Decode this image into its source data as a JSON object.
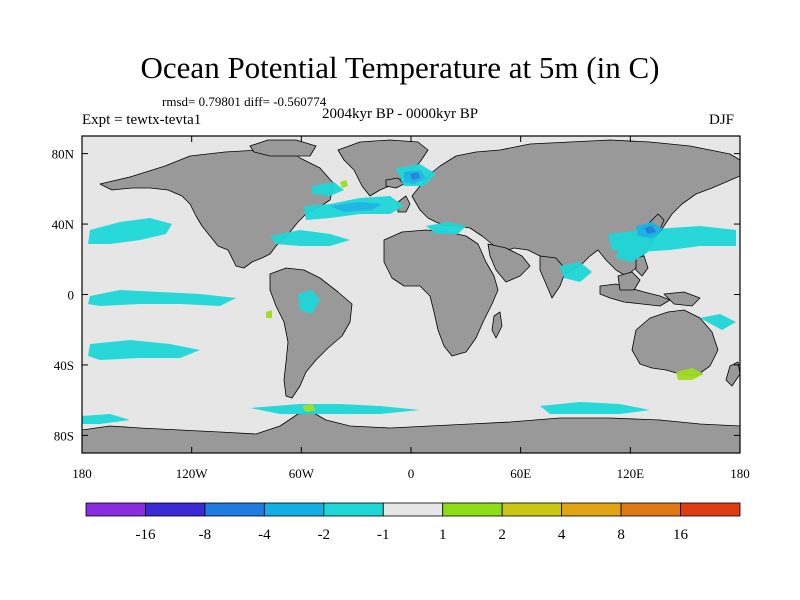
{
  "title": "Ocean Potential Temperature at 5m (in C)",
  "stats": "rmsd= 0.79801 diff= -0.560774",
  "expt": "Expt = tewtx-tevta1",
  "period": "2004kyr BP - 0000kyr BP",
  "season": "DJF",
  "colors": {
    "land": "#999999",
    "ocean_neutral": "#e6e6e6",
    "anomaly_minus1_to_minus2": "#1ed8d8",
    "anomaly_minus2_to_minus4": "#18b4e6",
    "anomaly_minus4_to_minus8": "#2080e0",
    "anomaly_plus1_to_plus2": "#a0dc20"
  },
  "map": {
    "lon_labels": [
      "180",
      "120W",
      "60W",
      "0",
      "60E",
      "120E",
      "180"
    ],
    "lat_labels": [
      "80N",
      "40N",
      "0",
      "40S",
      "80S"
    ],
    "lon_values": [
      -180,
      -120,
      -60,
      0,
      60,
      120,
      180
    ],
    "lat_values": [
      80,
      40,
      0,
      -40,
      -80
    ]
  },
  "colorbar": {
    "colors": [
      "#8a2be2",
      "#3a2ad6",
      "#1e7be0",
      "#12aee6",
      "#1ed6d6",
      "#e6e6e6",
      "#8edc14",
      "#c8c814",
      "#e0a414",
      "#e07814",
      "#e03c14"
    ],
    "labels": [
      "-16",
      "-8",
      "-4",
      "-2",
      "-1",
      "1",
      "2",
      "4",
      "8",
      "16"
    ]
  }
}
